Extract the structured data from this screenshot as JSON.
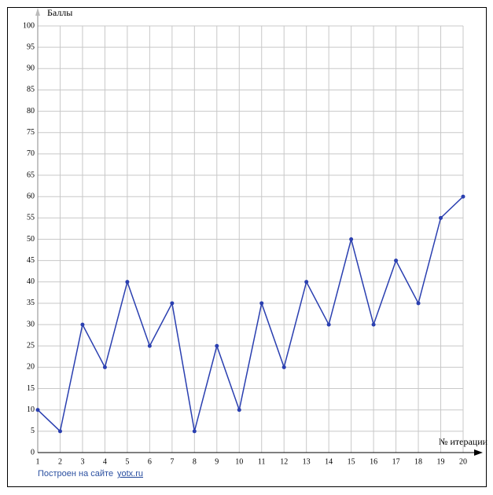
{
  "chart_data": {
    "type": "line",
    "y_label": "Баллы",
    "x_label": "№ итерации",
    "x": [
      1,
      2,
      3,
      4,
      5,
      6,
      7,
      8,
      9,
      10,
      11,
      12,
      13,
      14,
      15,
      16,
      17,
      18,
      19,
      20
    ],
    "values": [
      10,
      5,
      30,
      20,
      40,
      25,
      35,
      5,
      25,
      10,
      35,
      20,
      40,
      30,
      50,
      30,
      45,
      35,
      55,
      60
    ],
    "color": "#2a3fb0",
    "xlim": [
      1,
      20
    ],
    "xticks": [
      1,
      2,
      3,
      4,
      5,
      6,
      7,
      8,
      9,
      10,
      11,
      12,
      13,
      14,
      15,
      16,
      17,
      18,
      19,
      20
    ],
    "ylim": [
      0,
      100
    ],
    "yticks": [
      0,
      5,
      10,
      15,
      20,
      25,
      30,
      35,
      40,
      45,
      50,
      55,
      60,
      65,
      70,
      75,
      80,
      85,
      90,
      95,
      100
    ],
    "grid": true
  },
  "footer": {
    "text": "Построен на сайте",
    "link": "yotx.ru"
  }
}
